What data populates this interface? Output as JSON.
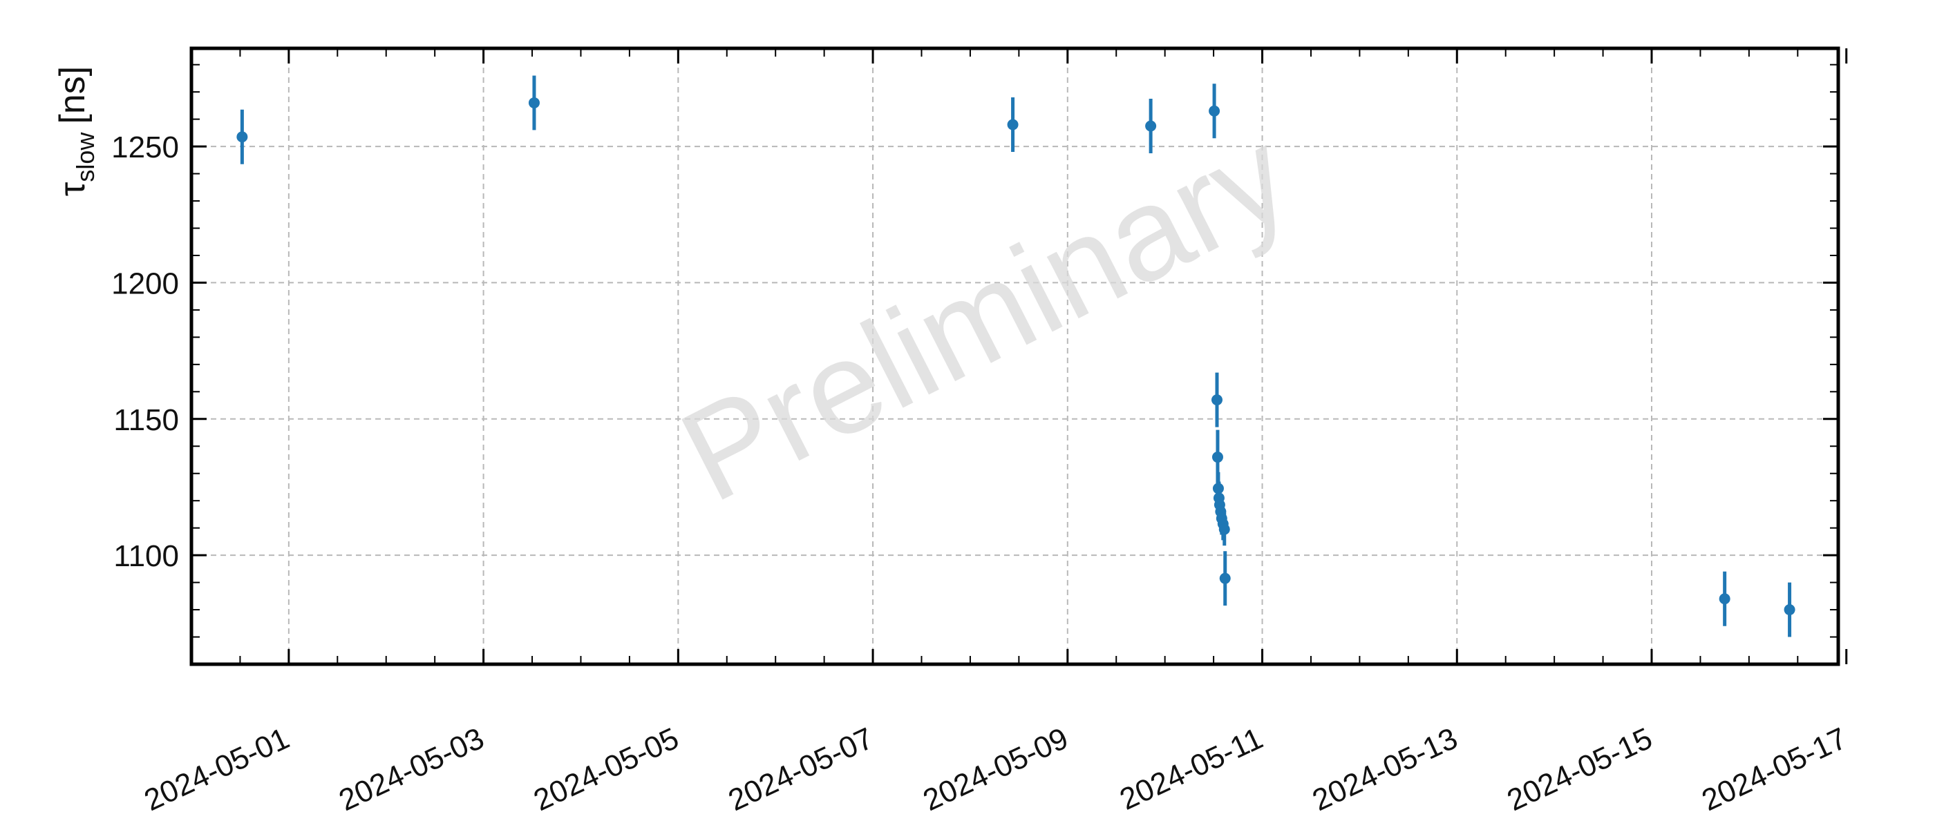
{
  "chart_data": {
    "type": "scatter",
    "title": "",
    "xlabel": "",
    "ylabel": "τ",
    "ylabel_subscript": "slow",
    "ylabel_unit": "[ns]",
    "watermark": "Preliminary",
    "x_axis_type": "date",
    "xlim": [
      "2024-04-30T00:00",
      "2024-05-16T22:00"
    ],
    "ylim": [
      1060,
      1286
    ],
    "x_ticks": [
      "2024-05-01",
      "2024-05-03",
      "2024-05-05",
      "2024-05-07",
      "2024-05-09",
      "2024-05-11",
      "2024-05-13",
      "2024-05-15",
      "2024-05-17"
    ],
    "x_tick_labels": [
      "2024-05-01",
      "2024-05-03",
      "2024-05-05",
      "2024-05-07",
      "2024-05-09",
      "2024-05-11",
      "2024-05-13",
      "2024-05-15",
      "2024-05-17"
    ],
    "y_ticks": [
      1100,
      1150,
      1200,
      1250
    ],
    "y_tick_labels": [
      "1100",
      "1150",
      "1200",
      "1250"
    ],
    "grid": true,
    "series_color": "#1f77b4",
    "series": [
      {
        "points": [
          {
            "x": "2024-04-30T12:30",
            "y": 1253.5,
            "err": 10
          },
          {
            "x": "2024-05-03T12:30",
            "y": 1266,
            "err": 10
          },
          {
            "x": "2024-05-08T10:30",
            "y": 1258,
            "err": 10
          },
          {
            "x": "2024-05-09T20:30",
            "y": 1257.5,
            "err": 10
          },
          {
            "x": "2024-05-10T12:10",
            "y": 1263,
            "err": 10
          },
          {
            "x": "2024-05-10T12:50",
            "y": 1157,
            "err": 10
          },
          {
            "x": "2024-05-10T13:00",
            "y": 1136,
            "err": 10
          },
          {
            "x": "2024-05-10T13:10",
            "y": 1124.5,
            "err": 6
          },
          {
            "x": "2024-05-10T13:20",
            "y": 1121,
            "err": 6
          },
          {
            "x": "2024-05-10T13:30",
            "y": 1118.5,
            "err": 6
          },
          {
            "x": "2024-05-10T13:45",
            "y": 1116,
            "err": 6
          },
          {
            "x": "2024-05-10T14:00",
            "y": 1113.5,
            "err": 6
          },
          {
            "x": "2024-05-10T14:20",
            "y": 1111.5,
            "err": 6
          },
          {
            "x": "2024-05-10T14:40",
            "y": 1109.5,
            "err": 6
          },
          {
            "x": "2024-05-10T14:50",
            "y": 1091.5,
            "err": 10
          },
          {
            "x": "2024-05-15T18:00",
            "y": 1084,
            "err": 10
          },
          {
            "x": "2024-05-16T10:00",
            "y": 1080,
            "err": 10
          }
        ]
      }
    ]
  }
}
